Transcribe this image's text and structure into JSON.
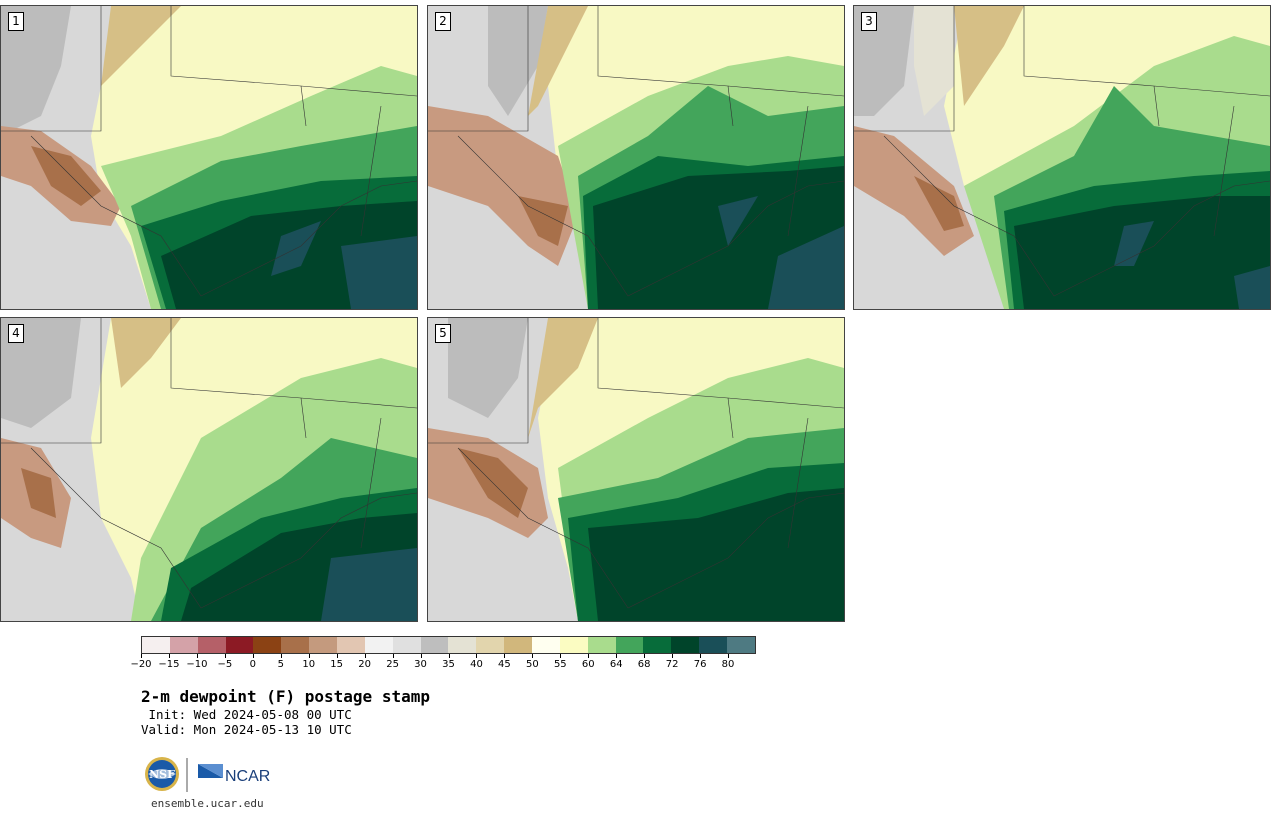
{
  "panels": [
    {
      "label": "1"
    },
    {
      "label": "2"
    },
    {
      "label": "3"
    },
    {
      "label": "4"
    },
    {
      "label": "5"
    }
  ],
  "colorbar": {
    "ticks": [
      "−20",
      "−15",
      "−10",
      "−5",
      "0",
      "5",
      "10",
      "15",
      "20",
      "25",
      "30",
      "35",
      "40",
      "45",
      "50",
      "55",
      "60",
      "64",
      "68",
      "72",
      "76",
      "80"
    ],
    "colors": [
      "#f5efef",
      "#d4a2a8",
      "#b56068",
      "#8c1a24",
      "#8b4214",
      "#a8704a",
      "#c49a7e",
      "#e2c6b2",
      "#f2f2f2",
      "#e0e0e0",
      "#bebebe",
      "#e4e2d4",
      "#e2d5ad",
      "#d1b77c",
      "#fffff0",
      "#fbfcc2",
      "#a9dc8d",
      "#43a55b",
      "#076c3a",
      "#00442a",
      "#1a4f58",
      "#4e7a82"
    ]
  },
  "title": "2-m dewpoint (F) postage stamp",
  "init": " Init: Wed 2024-05-08 00 UTC",
  "valid": "Valid: Mon 2024-05-13 10 UTC",
  "logos": {
    "nsf": "NSF",
    "ncar": "NCAR"
  },
  "url": "ensemble.ucar.edu"
}
